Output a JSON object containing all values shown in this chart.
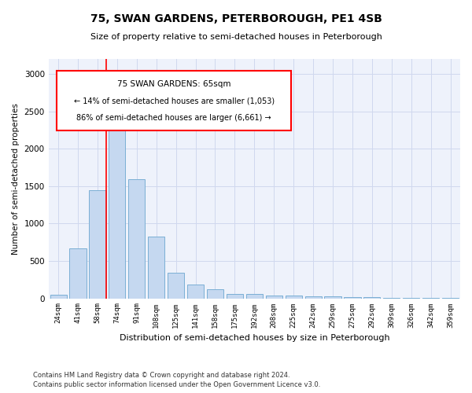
{
  "title": "75, SWAN GARDENS, PETERBOROUGH, PE1 4SB",
  "subtitle": "Size of property relative to semi-detached houses in Peterborough",
  "xlabel": "Distribution of semi-detached houses by size in Peterborough",
  "ylabel": "Number of semi-detached properties",
  "categories": [
    "24sqm",
    "41sqm",
    "58sqm",
    "74sqm",
    "91sqm",
    "108sqm",
    "125sqm",
    "141sqm",
    "158sqm",
    "175sqm",
    "192sqm",
    "208sqm",
    "225sqm",
    "242sqm",
    "259sqm",
    "275sqm",
    "292sqm",
    "309sqm",
    "326sqm",
    "342sqm",
    "359sqm"
  ],
  "values": [
    45,
    665,
    1450,
    2500,
    1590,
    830,
    345,
    180,
    120,
    60,
    60,
    40,
    35,
    30,
    25,
    20,
    15,
    10,
    5,
    5,
    3
  ],
  "bar_color": "#c5d8f0",
  "bar_edge_color": "#7bafd4",
  "ylim": [
    0,
    3200
  ],
  "yticks": [
    0,
    500,
    1000,
    1500,
    2000,
    2500,
    3000
  ],
  "property_line_label": "75 SWAN GARDENS: 65sqm",
  "annotation_smaller": "← 14% of semi-detached houses are smaller (1,053)",
  "annotation_larger": "86% of semi-detached houses are larger (6,661) →",
  "footer1": "Contains HM Land Registry data © Crown copyright and database right 2024.",
  "footer2": "Contains public sector information licensed under the Open Government Licence v3.0.",
  "bg_color": "#eef2fb",
  "grid_color": "#d0d8ee"
}
